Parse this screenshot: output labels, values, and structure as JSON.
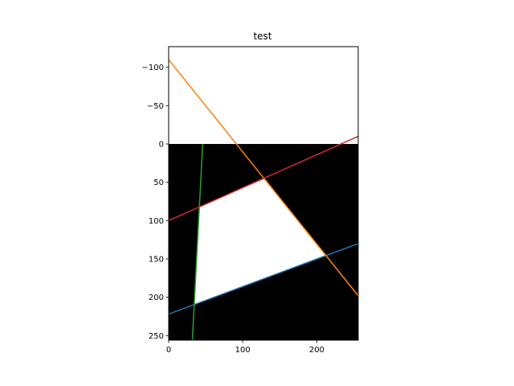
{
  "chart_data": {
    "type": "line",
    "title": "test",
    "xlabel": "",
    "ylabel": "",
    "xlim": [
      0,
      256
    ],
    "ylim": [
      -127,
      256
    ],
    "y_inverted": true,
    "grid": false,
    "legend": "none",
    "x_ticks": [
      0,
      100,
      200
    ],
    "x_tick_labels": [
      "0",
      "100",
      "200"
    ],
    "y_ticks": [
      -100,
      -50,
      0,
      50,
      100,
      150,
      200,
      250
    ],
    "y_tick_labels": [
      "−100",
      "−50",
      "0",
      "50",
      "100",
      "150",
      "200",
      "250"
    ],
    "image": {
      "extent": {
        "x": [
          0,
          256
        ],
        "y": [
          0,
          256
        ]
      },
      "background_color": "#000000",
      "region_color": "#ffffff",
      "region_vertices": [
        [
          35,
          210
        ],
        [
          41,
          82
        ],
        [
          130,
          45
        ],
        [
          212,
          145
        ]
      ]
    },
    "series": [
      {
        "color": "#1f77b4",
        "x": [
          0,
          256
        ],
        "y": [
          222,
          130
        ]
      },
      {
        "color": "#ff7f0e",
        "x": [
          0,
          256
        ],
        "y": [
          -110,
          198
        ]
      },
      {
        "color": "#2ca02c",
        "x": [
          32,
          46
        ],
        "y": [
          256,
          0
        ]
      },
      {
        "color": "#d62728",
        "x": [
          0,
          256
        ],
        "y": [
          100,
          -10
        ]
      }
    ]
  }
}
